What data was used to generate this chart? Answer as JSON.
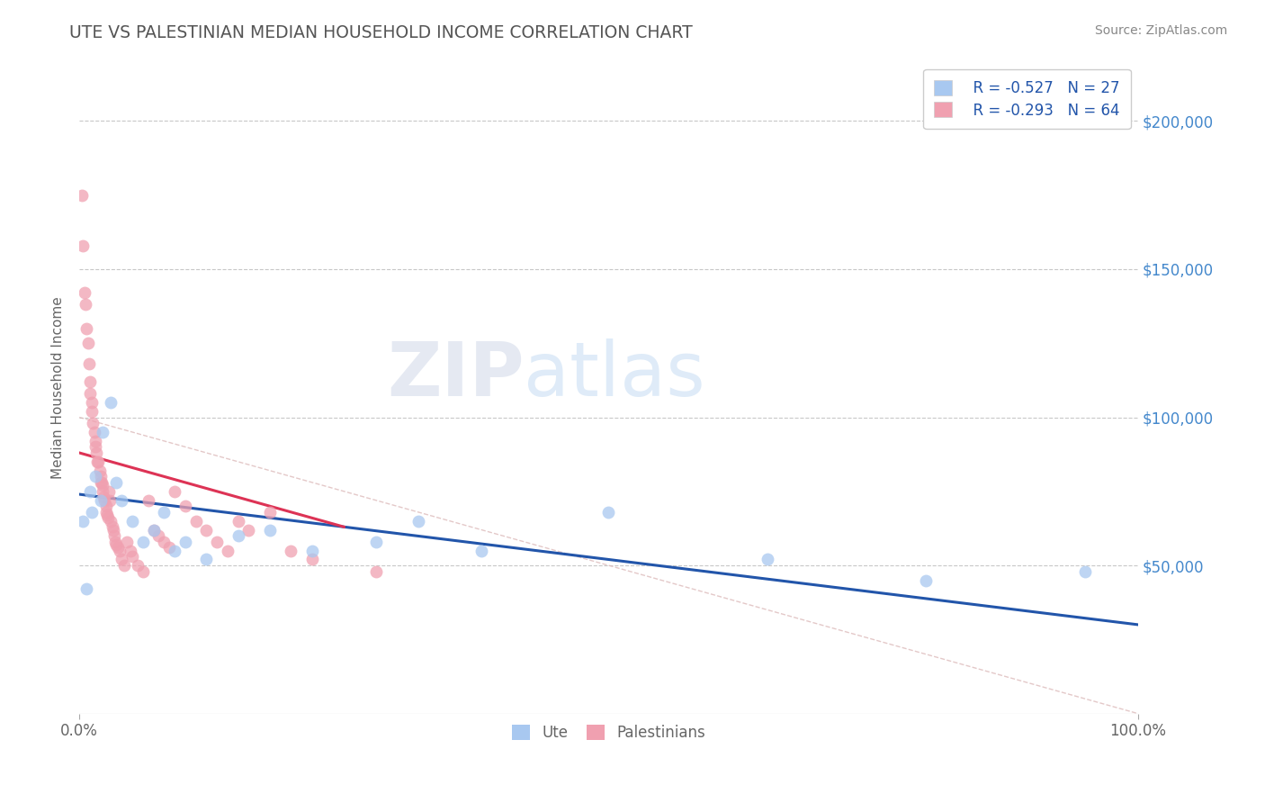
{
  "title": "UTE VS PALESTINIAN MEDIAN HOUSEHOLD INCOME CORRELATION CHART",
  "source": "Source: ZipAtlas.com",
  "ylabel": "Median Household Income",
  "xlim": [
    0,
    1.0
  ],
  "ylim": [
    0,
    220000
  ],
  "background_color": "#ffffff",
  "grid_color": "#c8c8c8",
  "ute_color": "#a8c8f0",
  "pal_color": "#f0a0b0",
  "ute_line_color": "#2255aa",
  "pal_line_color": "#dd3355",
  "ref_line_color": "#ddbbbb",
  "ute_R": -0.527,
  "ute_N": 27,
  "pal_R": -0.293,
  "pal_N": 64,
  "legend_text_color": "#2255aa",
  "title_color": "#555555",
  "source_color": "#888888",
  "axis_label_color": "#666666",
  "tick_color": "#aaaaaa",
  "right_tick_color": "#4488cc",
  "ute_x": [
    0.003,
    0.007,
    0.01,
    0.012,
    0.015,
    0.02,
    0.022,
    0.03,
    0.035,
    0.04,
    0.05,
    0.06,
    0.07,
    0.08,
    0.09,
    0.1,
    0.12,
    0.15,
    0.18,
    0.22,
    0.28,
    0.32,
    0.38,
    0.5,
    0.65,
    0.8,
    0.95
  ],
  "ute_y": [
    65000,
    42000,
    75000,
    68000,
    80000,
    72000,
    95000,
    105000,
    78000,
    72000,
    65000,
    58000,
    62000,
    68000,
    55000,
    58000,
    52000,
    60000,
    62000,
    55000,
    58000,
    65000,
    55000,
    68000,
    52000,
    45000,
    48000
  ],
  "pal_x": [
    0.002,
    0.003,
    0.005,
    0.006,
    0.007,
    0.008,
    0.009,
    0.01,
    0.01,
    0.012,
    0.012,
    0.013,
    0.014,
    0.015,
    0.015,
    0.016,
    0.017,
    0.018,
    0.019,
    0.02,
    0.02,
    0.021,
    0.022,
    0.022,
    0.023,
    0.024,
    0.025,
    0.025,
    0.026,
    0.027,
    0.028,
    0.029,
    0.03,
    0.031,
    0.032,
    0.033,
    0.034,
    0.035,
    0.036,
    0.038,
    0.04,
    0.042,
    0.045,
    0.048,
    0.05,
    0.055,
    0.06,
    0.065,
    0.07,
    0.075,
    0.08,
    0.085,
    0.09,
    0.1,
    0.11,
    0.12,
    0.13,
    0.14,
    0.15,
    0.16,
    0.18,
    0.2,
    0.22,
    0.28
  ],
  "pal_y": [
    175000,
    158000,
    142000,
    138000,
    130000,
    125000,
    118000,
    112000,
    108000,
    105000,
    102000,
    98000,
    95000,
    92000,
    90000,
    88000,
    85000,
    85000,
    82000,
    80000,
    78000,
    78000,
    77000,
    75000,
    73000,
    72000,
    70000,
    68000,
    67000,
    66000,
    75000,
    72000,
    65000,
    63000,
    62000,
    60000,
    58000,
    57000,
    56000,
    55000,
    52000,
    50000,
    58000,
    55000,
    53000,
    50000,
    48000,
    72000,
    62000,
    60000,
    58000,
    56000,
    75000,
    70000,
    65000,
    62000,
    58000,
    55000,
    65000,
    62000,
    68000,
    55000,
    52000,
    48000
  ],
  "ute_line_x0": 0.0,
  "ute_line_y0": 74000,
  "ute_line_x1": 1.0,
  "ute_line_y1": 30000,
  "pal_line_x0": 0.0,
  "pal_line_y0": 88000,
  "pal_line_x1": 0.25,
  "pal_line_y1": 63000,
  "ref_line_x0": 0.0,
  "ref_line_y0": 100000,
  "ref_line_x1": 1.0,
  "ref_line_y1": 0
}
